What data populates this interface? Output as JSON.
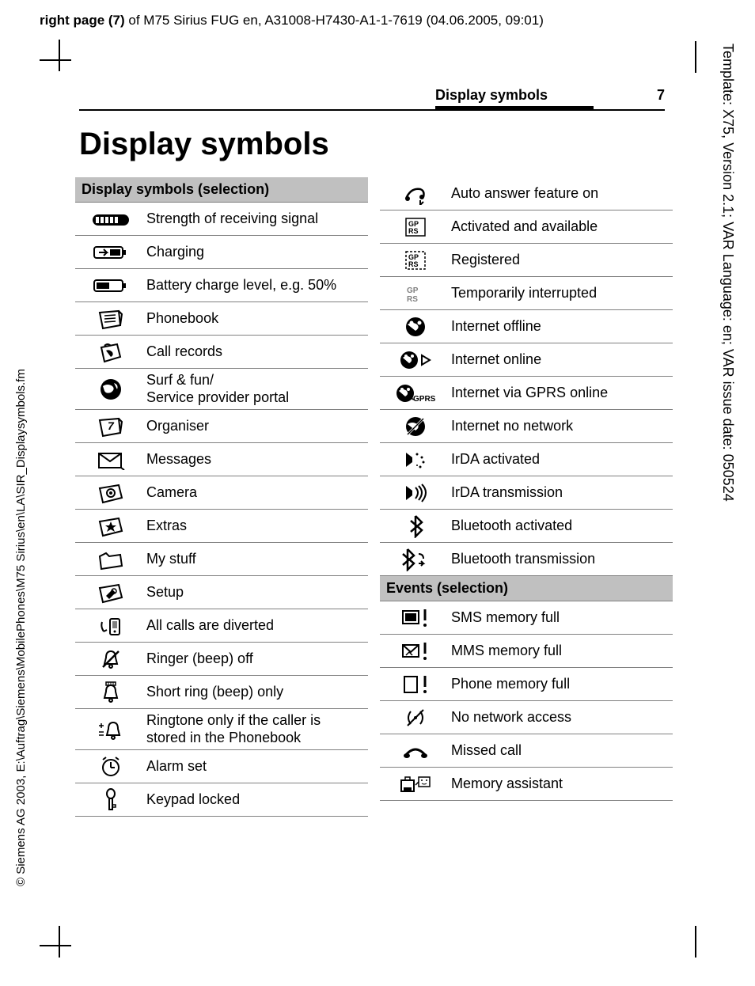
{
  "header_prefix": "right page (7)",
  "header_rest": " of M75 Sirius FUG en, A31008-H7430-A1-1-7619 (04.06.2005, 09:01)",
  "left_vertical": "© Siemens AG 2003, E:\\Auftrag\\Siemens\\MobilePhones\\M75 Sirius\\en\\LA\\SIR_Displaysymbols.fm",
  "right_vertical": "Template: X75, Version 2.1; VAR Language: en; VAR issue date: 050524",
  "running_head": "Display symbols",
  "page_number": "7",
  "title": "Display symbols",
  "left_section_head": "Display symbols (selection)",
  "left_rows": [
    {
      "icon": "signal",
      "desc": "Strength of receiving signal"
    },
    {
      "icon": "charging",
      "desc": "Charging"
    },
    {
      "icon": "battery",
      "desc": "Battery charge level, e.g. 50%"
    },
    {
      "icon": "phonebook",
      "desc": "Phonebook"
    },
    {
      "icon": "callrecords",
      "desc": "Call records"
    },
    {
      "icon": "globe",
      "desc": "Surf & fun/\nService provider portal"
    },
    {
      "icon": "organiser",
      "desc": "Organiser"
    },
    {
      "icon": "messages",
      "desc": "Messages"
    },
    {
      "icon": "camera",
      "desc": "Camera"
    },
    {
      "icon": "extras",
      "desc": "Extras"
    },
    {
      "icon": "mystuff",
      "desc": "My stuff"
    },
    {
      "icon": "setup",
      "desc": "Setup"
    },
    {
      "icon": "divert",
      "desc": "All calls are diverted"
    },
    {
      "icon": "ringeroff",
      "desc": "Ringer (beep) off"
    },
    {
      "icon": "shortring",
      "desc": "Short ring (beep) only"
    },
    {
      "icon": "ringtone-pb",
      "desc": "Ringtone only if the caller is stored in the Phonebook"
    },
    {
      "icon": "alarm",
      "desc": "Alarm set"
    },
    {
      "icon": "keylock",
      "desc": "Keypad locked"
    }
  ],
  "right_rows_top": [
    {
      "icon": "autoanswer",
      "desc": "Auto answer feature on"
    },
    {
      "icon": "gprs-box",
      "desc": "Activated and available"
    },
    {
      "icon": "gprs-dash",
      "desc": "Registered"
    },
    {
      "icon": "gprs-gray",
      "desc": "Temporarily interrupted"
    },
    {
      "icon": "net-offline",
      "desc": "Internet offline"
    },
    {
      "icon": "net-online",
      "desc": "Internet online"
    },
    {
      "icon": "net-gprs",
      "desc": "Internet via GPRS online"
    },
    {
      "icon": "net-none",
      "desc": "Internet no network"
    },
    {
      "icon": "irda-act",
      "desc": "IrDA activated"
    },
    {
      "icon": "irda-tx",
      "desc": "IrDA transmission"
    },
    {
      "icon": "bt-act",
      "desc": "Bluetooth activated"
    },
    {
      "icon": "bt-tx",
      "desc": "Bluetooth transmission"
    }
  ],
  "events_head": "Events (selection)",
  "right_rows_bottom": [
    {
      "icon": "sms-full",
      "desc": "SMS memory full"
    },
    {
      "icon": "mms-full",
      "desc": "MMS memory full"
    },
    {
      "icon": "phone-full",
      "desc": "Phone memory full"
    },
    {
      "icon": "no-net",
      "desc": "No network access"
    },
    {
      "icon": "missed",
      "desc": "Missed call"
    },
    {
      "icon": "mem-assist",
      "desc": "Memory assistant"
    }
  ],
  "colors": {
    "section_bg": "#c0c0c0",
    "rule": "#808080"
  }
}
